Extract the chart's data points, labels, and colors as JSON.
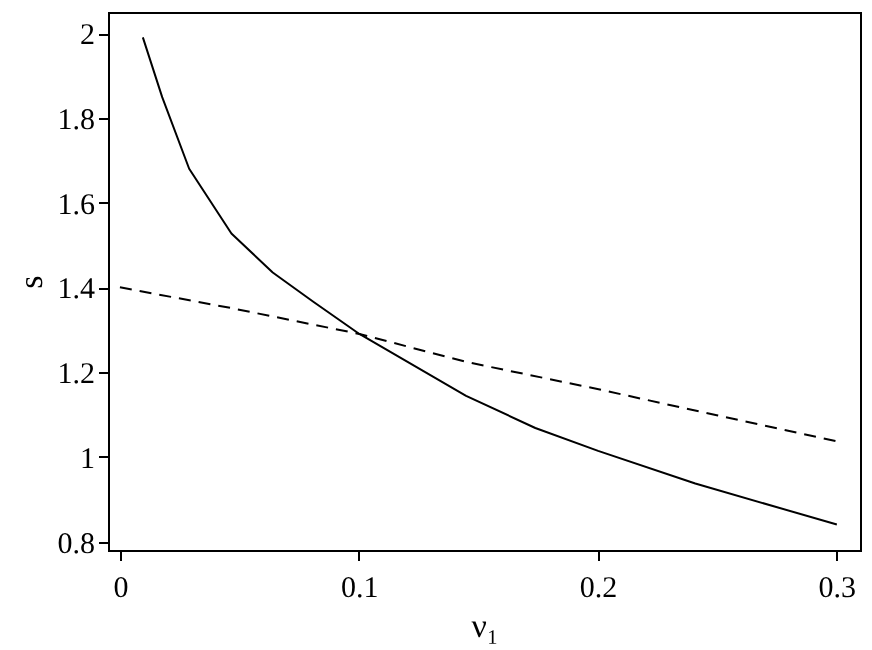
{
  "chart_data": {
    "type": "line",
    "xlabel": "ν₁",
    "ylabel": "s",
    "xlim": [
      -0.005,
      0.31
    ],
    "ylim": [
      0.78,
      2.05
    ],
    "xticks": [
      0,
      0.1,
      0.2,
      0.3
    ],
    "yticks": [
      0.8,
      1,
      1.2,
      1.4,
      1.6,
      1.8,
      2
    ],
    "series": [
      {
        "color": "#000000",
        "line_style": "solid",
        "x": [
          0.0096,
          0.0177,
          0.029,
          0.0467,
          0.064,
          0.081,
          0.1003,
          0.145,
          0.174,
          0.2003,
          0.241,
          0.3003
        ],
        "values": [
          1.99,
          1.849,
          1.68,
          1.527,
          1.435,
          1.366,
          1.29,
          1.144,
          1.068,
          1.014,
          0.937,
          0.84
        ]
      },
      {
        "color": "#000000",
        "line_style": "dashed",
        "x": [
          0,
          0.0467,
          0.1003,
          0.145,
          0.2,
          0.25,
          0.3
        ],
        "values": [
          1.4,
          1.351,
          1.29,
          1.224,
          1.16,
          1.098,
          1.037
        ]
      }
    ]
  }
}
